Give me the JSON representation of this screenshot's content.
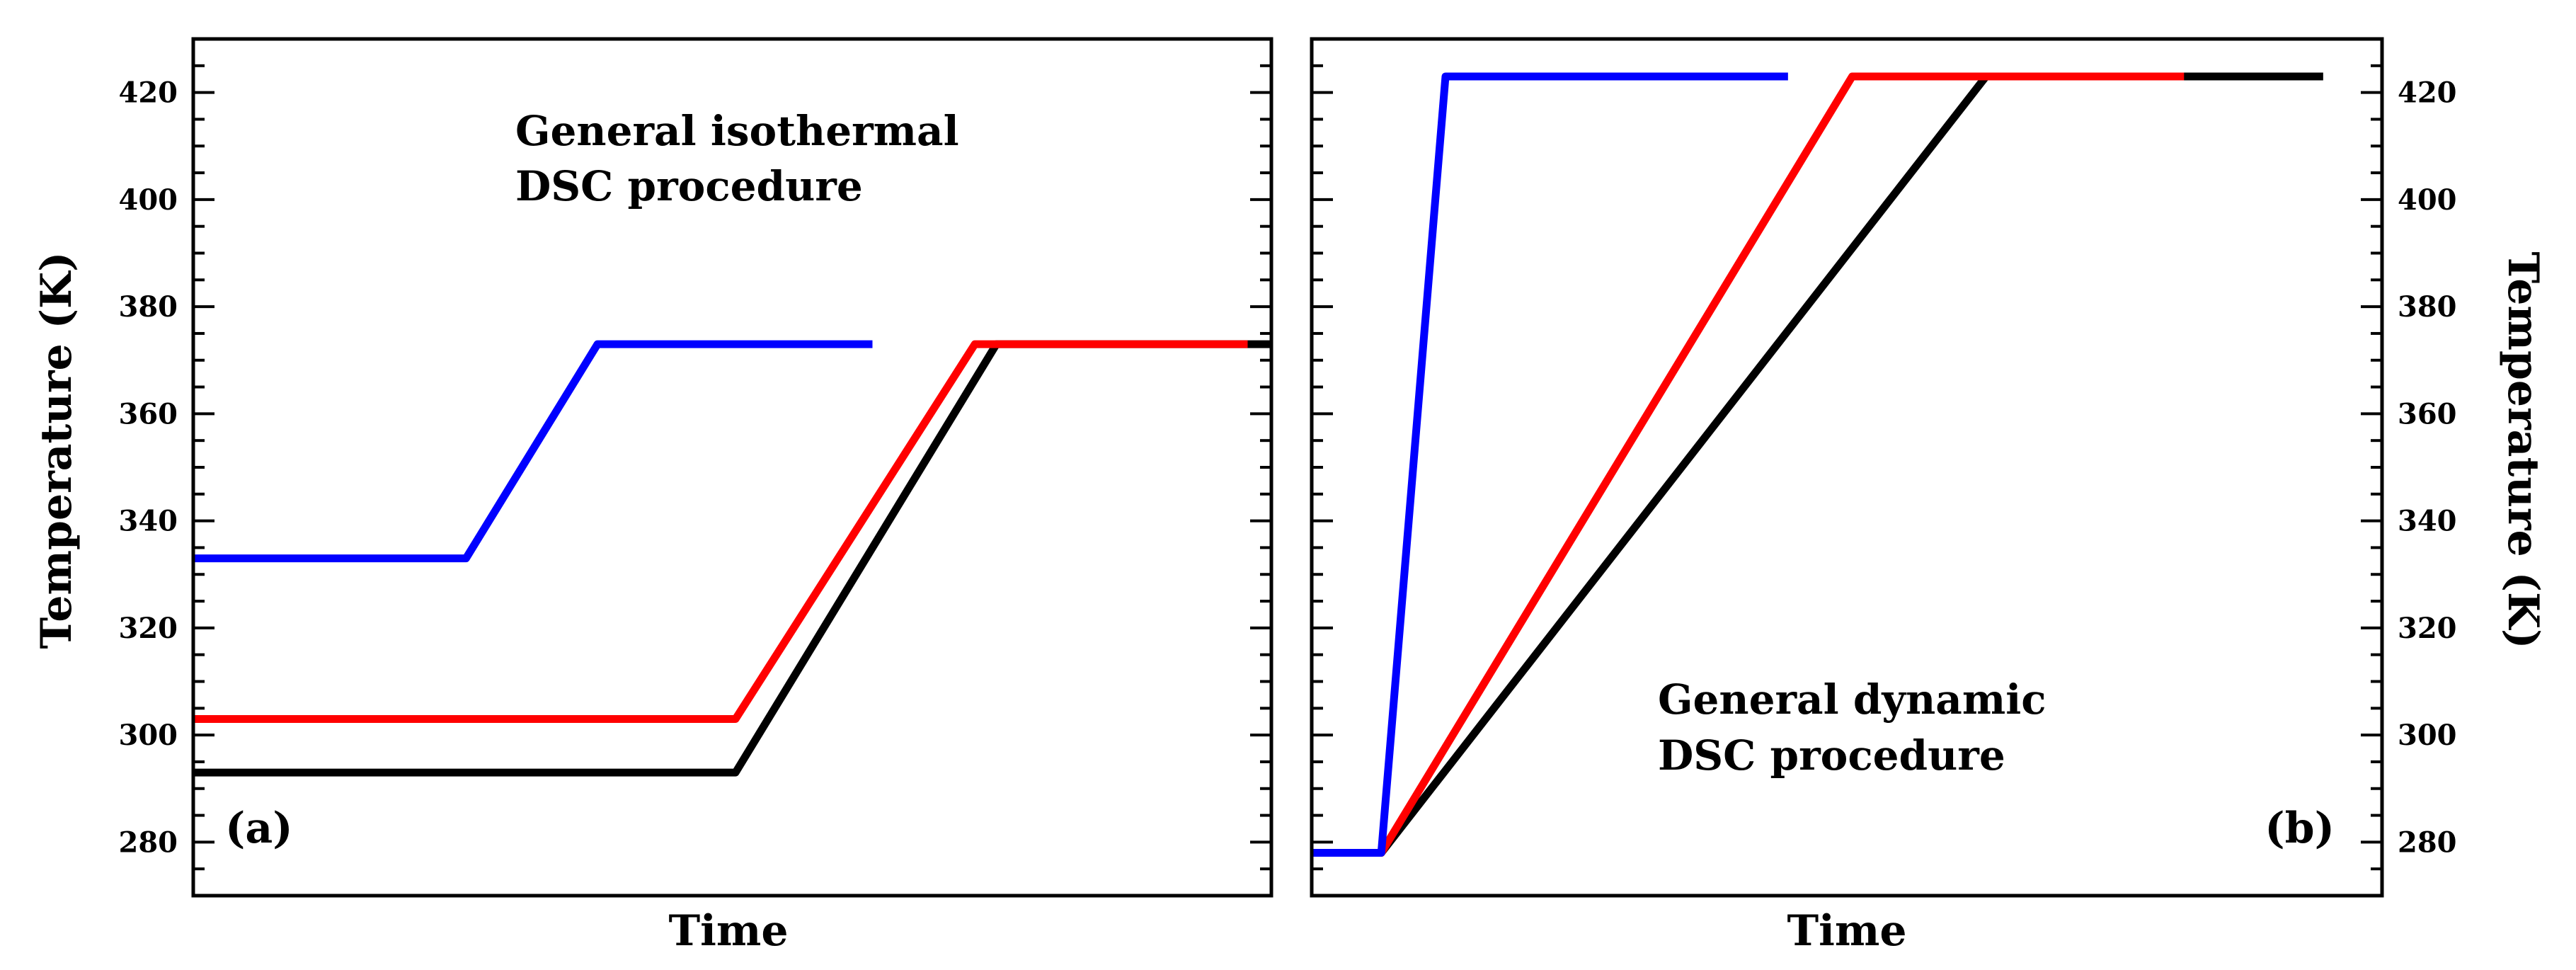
{
  "chart_data": [
    {
      "panel_label": "(a)",
      "type": "line",
      "annotation": [
        "General isothermal",
        "DSC procedure"
      ],
      "xlabel": "Time",
      "ylabel": "Temperature (K)",
      "ylabel_side": "left",
      "ylim": [
        270,
        430
      ],
      "xlim": [
        0,
        100
      ],
      "y_ticks": [
        280,
        300,
        320,
        340,
        360,
        380,
        400,
        420
      ],
      "x_tick_labels": false,
      "grid": false,
      "series": [
        {
          "color": "#000000",
          "x": [
            0,
            50.3,
            74.5,
            100
          ],
          "y": [
            293,
            293,
            373,
            373
          ]
        },
        {
          "color": "#ff0000",
          "x": [
            0,
            50.3,
            72.5,
            97.8
          ],
          "y": [
            303,
            303,
            373,
            373
          ]
        },
        {
          "color": "#0000ff",
          "x": [
            0,
            25.3,
            37.5,
            63.0
          ],
          "y": [
            333,
            333,
            373,
            373
          ]
        }
      ]
    },
    {
      "panel_label": "(b)",
      "type": "line",
      "annotation": [
        "General dynamic",
        "DSC procedure"
      ],
      "xlabel": "Time",
      "ylabel": "Temperature (K)",
      "ylabel_side": "right",
      "ylim": [
        270,
        430
      ],
      "xlim": [
        0,
        100
      ],
      "y_ticks": [
        280,
        300,
        320,
        340,
        360,
        380,
        400,
        420
      ],
      "x_tick_labels": false,
      "grid": false,
      "series": [
        {
          "color": "#000000",
          "x": [
            0,
            6.5,
            63.0,
            94.5
          ],
          "y": [
            278,
            278,
            423,
            423
          ]
        },
        {
          "color": "#ff0000",
          "x": [
            0,
            6.5,
            50.5,
            81.5
          ],
          "y": [
            278,
            278,
            423,
            423
          ]
        },
        {
          "color": "#0000ff",
          "x": [
            0,
            6.5,
            12.5,
            44.5
          ],
          "y": [
            278,
            278,
            423,
            423
          ]
        }
      ]
    }
  ]
}
